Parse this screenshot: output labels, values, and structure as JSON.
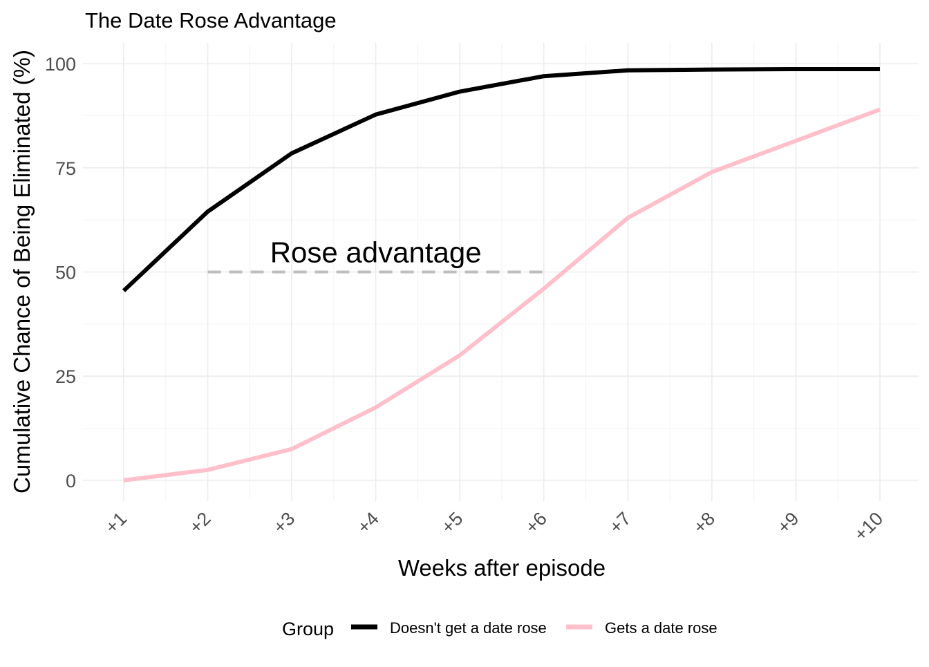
{
  "chart_data": {
    "type": "line",
    "title": "The Date Rose Advantage",
    "xlabel": "Weeks after episode",
    "ylabel": "Cumulative Chance of Being Eliminated (%)",
    "categories": [
      "+1",
      "+2",
      "+3",
      "+4",
      "+5",
      "+6",
      "+7",
      "+8",
      "+9",
      "+10"
    ],
    "y_ticks": [
      0,
      25,
      50,
      75,
      100
    ],
    "ylim": [
      -5,
      105
    ],
    "grid": true,
    "series": [
      {
        "name": "Doesn't get a date rose",
        "color": "#000000",
        "values": [
          45.5,
          64.5,
          78.5,
          87.8,
          93.3,
          97.0,
          98.4,
          98.6,
          98.7,
          98.7
        ]
      },
      {
        "name": "Gets a date rose",
        "color": "#ffc0cb",
        "values": [
          0.0,
          2.5,
          7.5,
          17.5,
          30.0,
          46.0,
          63.0,
          74.0,
          81.5,
          89.0
        ]
      }
    ],
    "annotation": {
      "text": "Rose advantage",
      "line_y": 50,
      "line_from": "+2",
      "line_to": "+6",
      "line_color": "#bebebe"
    },
    "legend": {
      "title": "Group",
      "position": "bottom"
    }
  }
}
